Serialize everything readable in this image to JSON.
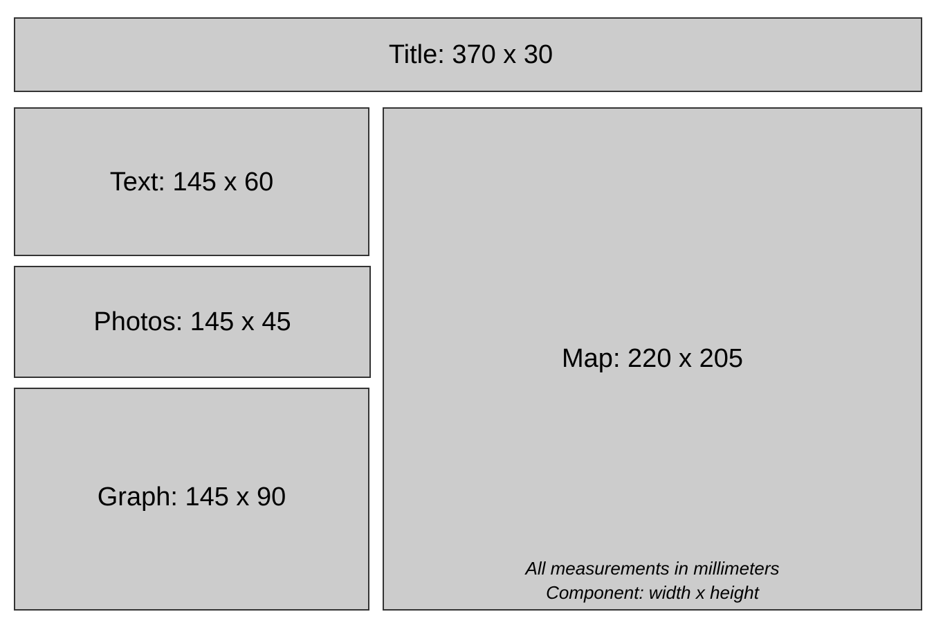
{
  "panels": {
    "title": "Title: 370 x 30",
    "text": "Text: 145 x 60",
    "photos": "Photos: 145 x 45",
    "graph": "Graph: 145 x 90",
    "map": "Map: 220 x 205"
  },
  "notes": {
    "line1": "All measurements in millimeters",
    "line2": "Component: width x height"
  },
  "colors": {
    "panel_fill": "#cccccc",
    "panel_border": "#333333",
    "background": "#ffffff"
  }
}
